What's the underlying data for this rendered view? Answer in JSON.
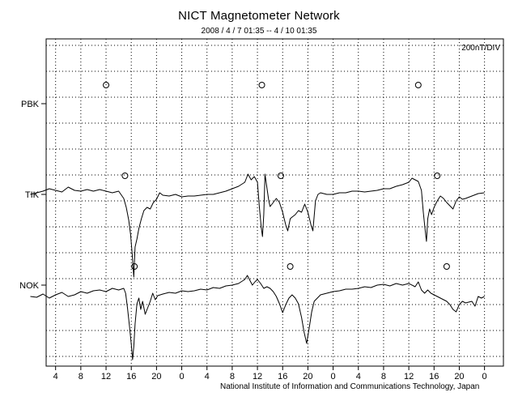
{
  "chart_data": {
    "type": "line",
    "title": "NICT Magnetometer Network",
    "subtitle": "2008 / 4 / 7   01:35 -- 4 / 10   01:35",
    "scale_label": "200nT/DIV",
    "footer": "National Institute of Information and Communications Technology, Japan",
    "xlabel": "",
    "ylabel": "",
    "x_ticks": [
      "4",
      "8",
      "12",
      "16",
      "20",
      "0",
      "4",
      "8",
      "12",
      "16",
      "20",
      "0",
      "4",
      "8",
      "12",
      "16",
      "20",
      "0"
    ],
    "grid": true,
    "stations": [
      {
        "name": "PBK",
        "circle_hours": [
          12,
          36.7,
          61.5
        ],
        "points": []
      },
      {
        "name": "TIK",
        "circle_hours": [
          15,
          39.7,
          64.5
        ],
        "points": [
          [
            0,
            240
          ],
          [
            1,
            238
          ],
          [
            2,
            236
          ],
          [
            3,
            233
          ],
          [
            4,
            235
          ],
          [
            5,
            237
          ],
          [
            6,
            231
          ],
          [
            7,
            235
          ],
          [
            8,
            236
          ],
          [
            9,
            234
          ],
          [
            10,
            236
          ],
          [
            11,
            234
          ],
          [
            12,
            236
          ],
          [
            13,
            238
          ],
          [
            14,
            236
          ],
          [
            14.8,
            245
          ],
          [
            15.2,
            256
          ],
          [
            15.6,
            272
          ],
          [
            15.9,
            290
          ],
          [
            16.2,
            320
          ],
          [
            16.4,
            342
          ],
          [
            16.6,
            305
          ],
          [
            16.9,
            295
          ],
          [
            17.2,
            282
          ],
          [
            17.6,
            270
          ],
          [
            18.0,
            260
          ],
          [
            18.5,
            256
          ],
          [
            19.0,
            258
          ],
          [
            19.5,
            250
          ],
          [
            20.0,
            246
          ],
          [
            20.5,
            238
          ],
          [
            21,
            241
          ],
          [
            22,
            242
          ],
          [
            23,
            240
          ],
          [
            24,
            243
          ],
          [
            25,
            242
          ],
          [
            26,
            242
          ],
          [
            27,
            241
          ],
          [
            28,
            240
          ],
          [
            29,
            240
          ],
          [
            30,
            238
          ],
          [
            31,
            236
          ],
          [
            32,
            233
          ],
          [
            33,
            230
          ],
          [
            34,
            225
          ],
          [
            34.5,
            215
          ],
          [
            35,
            222
          ],
          [
            35.5,
            218
          ],
          [
            36,
            225
          ],
          [
            36.3,
            255
          ],
          [
            36.6,
            280
          ],
          [
            36.8,
            292
          ],
          [
            37,
            265
          ],
          [
            37.2,
            215
          ],
          [
            37.5,
            232
          ],
          [
            37.8,
            248
          ],
          [
            38,
            255
          ],
          [
            38.5,
            250
          ],
          [
            39,
            245
          ],
          [
            39.5,
            250
          ],
          [
            40,
            262
          ],
          [
            40.5,
            278
          ],
          [
            40.8,
            285
          ],
          [
            41.2,
            270
          ],
          [
            41.5,
            268
          ],
          [
            42,
            265
          ],
          [
            42.5,
            260
          ],
          [
            43,
            262
          ],
          [
            43.5,
            252
          ],
          [
            44,
            262
          ],
          [
            44.5,
            278
          ],
          [
            44.8,
            285
          ],
          [
            45.2,
            248
          ],
          [
            45.6,
            240
          ],
          [
            46,
            238
          ],
          [
            47,
            240
          ],
          [
            48,
            240
          ],
          [
            49,
            238
          ],
          [
            50,
            238
          ],
          [
            51,
            236
          ],
          [
            52,
            236
          ],
          [
            53,
            237
          ],
          [
            54,
            236
          ],
          [
            55,
            235
          ],
          [
            56,
            233
          ],
          [
            57,
            233
          ],
          [
            58,
            230
          ],
          [
            59,
            228
          ],
          [
            60,
            225
          ],
          [
            60.5,
            220
          ],
          [
            61,
            222
          ],
          [
            61.5,
            224
          ],
          [
            62,
            235
          ],
          [
            62.3,
            262
          ],
          [
            62.6,
            285
          ],
          [
            62.8,
            298
          ],
          [
            63,
            270
          ],
          [
            63.3,
            258
          ],
          [
            63.6,
            265
          ],
          [
            64,
            256
          ],
          [
            64.5,
            248
          ],
          [
            65,
            242
          ],
          [
            65.5,
            245
          ],
          [
            66,
            250
          ],
          [
            66.5,
            254
          ],
          [
            67,
            258
          ],
          [
            67.5,
            248
          ],
          [
            68,
            243
          ],
          [
            68.5,
            246
          ],
          [
            69,
            245
          ],
          [
            70,
            242
          ],
          [
            71,
            239
          ],
          [
            72,
            238
          ]
        ]
      },
      {
        "name": "NOK",
        "circle_hours": [
          16.5,
          41.2,
          66
        ],
        "points": [
          [
            0,
            366
          ],
          [
            1,
            367
          ],
          [
            2,
            363
          ],
          [
            3,
            368
          ],
          [
            4,
            364
          ],
          [
            5,
            361
          ],
          [
            6,
            366
          ],
          [
            7,
            364
          ],
          [
            8,
            360
          ],
          [
            9,
            362
          ],
          [
            10,
            359
          ],
          [
            11,
            358
          ],
          [
            12,
            360
          ],
          [
            13,
            356
          ],
          [
            14,
            358
          ],
          [
            14.8,
            356
          ],
          [
            15.1,
            362
          ],
          [
            15.4,
            380
          ],
          [
            15.7,
            402
          ],
          [
            16.0,
            425
          ],
          [
            16.2,
            444
          ],
          [
            16.4,
            428
          ],
          [
            16.6,
            400
          ],
          [
            16.9,
            375
          ],
          [
            17.2,
            368
          ],
          [
            17.5,
            382
          ],
          [
            17.8,
            372
          ],
          [
            18.2,
            388
          ],
          [
            18.6,
            380
          ],
          [
            19.0,
            372
          ],
          [
            19.4,
            362
          ],
          [
            19.8,
            370
          ],
          [
            20.2,
            365
          ],
          [
            21,
            363
          ],
          [
            22,
            361
          ],
          [
            23,
            362
          ],
          [
            24,
            359
          ],
          [
            25,
            360
          ],
          [
            26,
            359
          ],
          [
            27,
            357
          ],
          [
            28,
            358
          ],
          [
            29,
            355
          ],
          [
            30,
            356
          ],
          [
            31,
            353
          ],
          [
            32,
            352
          ],
          [
            33,
            350
          ],
          [
            34,
            345
          ],
          [
            34.4,
            340
          ],
          [
            34.8,
            346
          ],
          [
            35.2,
            352
          ],
          [
            35.6,
            348
          ],
          [
            36,
            345
          ],
          [
            36.5,
            350
          ],
          [
            37,
            356
          ],
          [
            37.5,
            354
          ],
          [
            38,
            356
          ],
          [
            38.5,
            360
          ],
          [
            39,
            366
          ],
          [
            39.5,
            375
          ],
          [
            40,
            386
          ],
          [
            40.5,
            376
          ],
          [
            41,
            368
          ],
          [
            41.5,
            364
          ],
          [
            42,
            368
          ],
          [
            42.5,
            375
          ],
          [
            43,
            392
          ],
          [
            43.4,
            410
          ],
          [
            43.8,
            424
          ],
          [
            44.2,
            405
          ],
          [
            44.6,
            385
          ],
          [
            45,
            372
          ],
          [
            45.5,
            368
          ],
          [
            46,
            364
          ],
          [
            47,
            362
          ],
          [
            48,
            360
          ],
          [
            49,
            359
          ],
          [
            50,
            357
          ],
          [
            51,
            357
          ],
          [
            52,
            356
          ],
          [
            53,
            354
          ],
          [
            54,
            355
          ],
          [
            55,
            352
          ],
          [
            56,
            351
          ],
          [
            57,
            353
          ],
          [
            58,
            350
          ],
          [
            59,
            352
          ],
          [
            60,
            350
          ],
          [
            61,
            354
          ],
          [
            61.5,
            348
          ],
          [
            62,
            358
          ],
          [
            62.5,
            362
          ],
          [
            63,
            358
          ],
          [
            63.5,
            362
          ],
          [
            64,
            364
          ],
          [
            64.5,
            366
          ],
          [
            65,
            368
          ],
          [
            65.5,
            370
          ],
          [
            66,
            372
          ],
          [
            66.5,
            376
          ],
          [
            67,
            382
          ],
          [
            67.5,
            385
          ],
          [
            68,
            376
          ],
          [
            68.5,
            372
          ],
          [
            69,
            374
          ],
          [
            70,
            372
          ],
          [
            70.5,
            378
          ],
          [
            71,
            366
          ],
          [
            71.5,
            368
          ],
          [
            72,
            366
          ]
        ]
      }
    ]
  }
}
